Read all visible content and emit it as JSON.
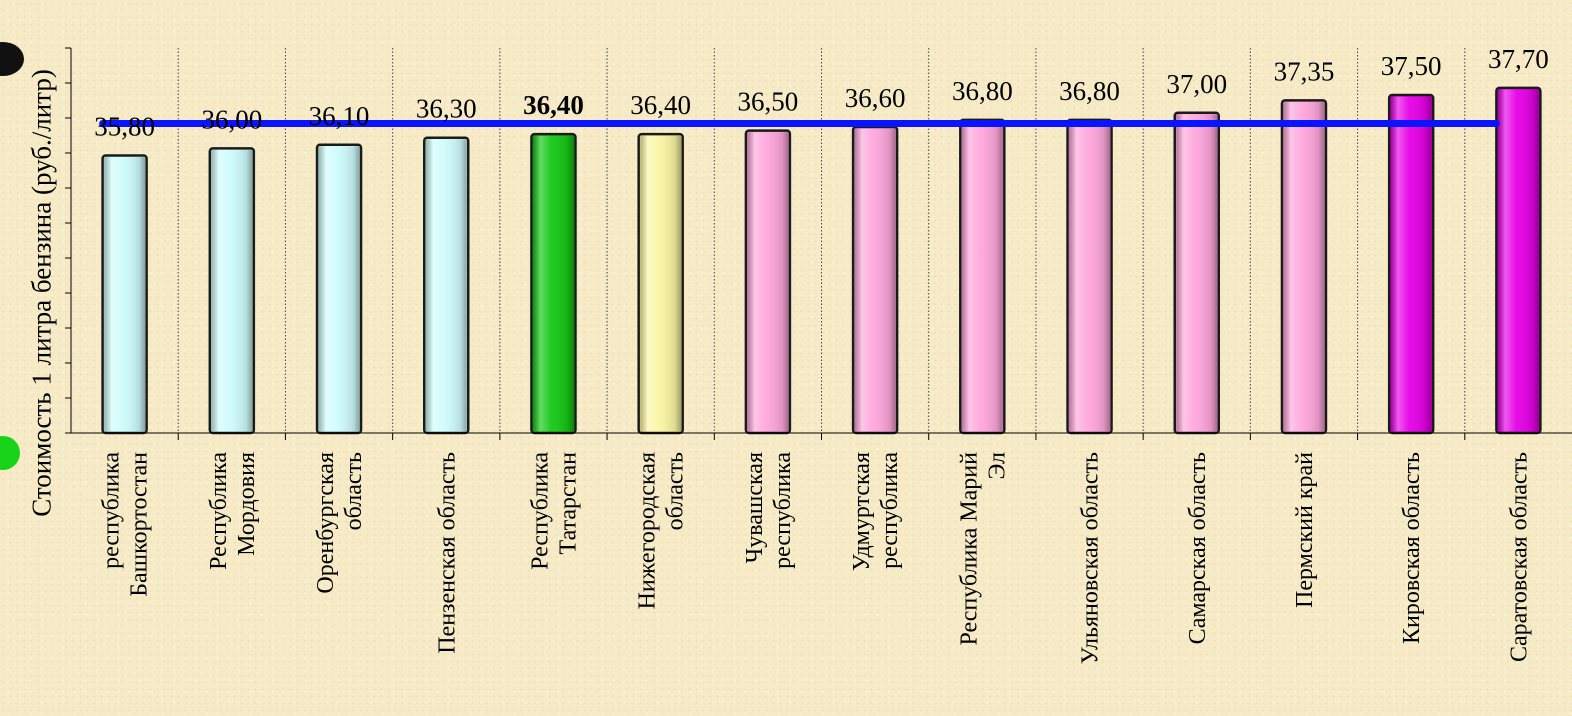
{
  "chart_data": {
    "type": "bar",
    "ylabel": "Стоимость 1 литра бензина  (руб./литр)",
    "xlabel": "",
    "ylim": [
      28.0,
      37.5
    ],
    "categories": [
      [
        "республика",
        "Башкортостан"
      ],
      [
        "Республика",
        "Мордовия"
      ],
      [
        "Оренбургская",
        "область"
      ],
      [
        "Пензенская область"
      ],
      [
        "Республика",
        "Татарстан"
      ],
      [
        "Нижегородская",
        "область"
      ],
      [
        "Чувашская",
        "республика"
      ],
      [
        "Удмуртская",
        "республика"
      ],
      [
        "Республика Марий",
        "Эл"
      ],
      [
        "Ульяновская область"
      ],
      [
        "Самарская область"
      ],
      [
        "Пермский край"
      ],
      [
        "Кировская область"
      ],
      [
        "Саратовская область"
      ]
    ],
    "values": [
      35.8,
      36.0,
      36.1,
      36.3,
      36.4,
      36.4,
      36.5,
      36.6,
      36.8,
      36.8,
      37.0,
      37.35,
      37.5,
      37.7
    ],
    "value_labels": [
      "35,80",
      "36,00",
      "36,10",
      "36,30",
      "36,40",
      "36,40",
      "36,50",
      "36,60",
      "36,80",
      "36,80",
      "37,00",
      "37,35",
      "37,50",
      "37,70"
    ],
    "highlight_index": 4,
    "bar_colors": [
      "#cffcfc",
      "#cffcfc",
      "#cffcfc",
      "#cffcfc",
      "#14c814",
      "#fbf6a4",
      "#ffa6dc",
      "#ffa6dc",
      "#ffa6dc",
      "#ffa6dc",
      "#ffa6dc",
      "#ffa6dc",
      "#e600e6",
      "#e600e6"
    ],
    "reference_line": {
      "value": 36.7,
      "color": "#0a14ff"
    },
    "grid": "vertical dotted separators between categories"
  }
}
